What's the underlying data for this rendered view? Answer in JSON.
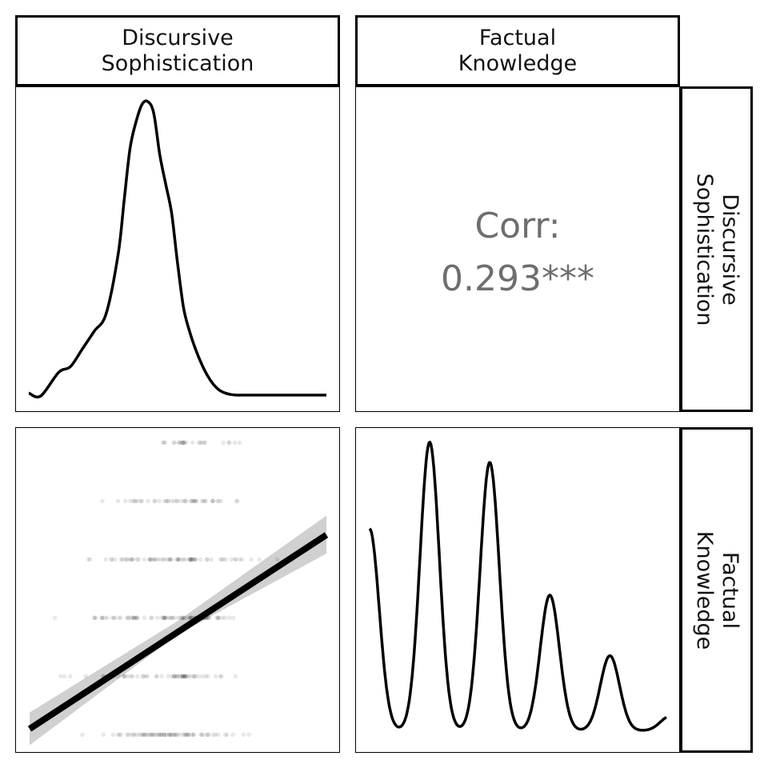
{
  "strips": {
    "top": [
      {
        "line1": "Discursive",
        "line2": "Sophistication"
      },
      {
        "line1": "Factual",
        "line2": "Knowledge"
      }
    ],
    "right": [
      {
        "line1": "Discursive",
        "line2": "Sophistication"
      },
      {
        "line1": "Factual",
        "line2": "Knowledge"
      }
    ]
  },
  "colors": {
    "line": "#000000",
    "band": "#d0d0d0",
    "points": "#000000",
    "corr_text": "#6e6e6e"
  },
  "chart_data": [
    {
      "type": "line",
      "panel": "Discursive Sophistication density",
      "x": [
        0.0,
        0.04,
        0.1,
        0.14,
        0.18,
        0.22,
        0.26,
        0.3,
        0.32,
        0.34,
        0.36,
        0.38,
        0.4,
        0.42,
        0.44,
        0.46,
        0.48,
        0.5,
        0.52,
        0.54,
        0.56,
        0.58,
        0.6,
        0.62,
        0.64,
        0.66,
        0.68,
        0.7,
        0.72,
        0.76,
        0.8,
        0.86,
        0.92,
        1.0
      ],
      "y": [
        0.01,
        0.0,
        0.08,
        0.1,
        0.16,
        0.22,
        0.28,
        0.48,
        0.66,
        0.84,
        0.93,
        0.99,
        1.0,
        0.96,
        0.82,
        0.72,
        0.62,
        0.45,
        0.3,
        0.22,
        0.16,
        0.11,
        0.07,
        0.04,
        0.02,
        0.01,
        0.005,
        0.003,
        0.003,
        0.003,
        0.003,
        0.003,
        0.003,
        0.003
      ],
      "xlim": [
        0,
        1
      ],
      "ylim": [
        0,
        1
      ]
    },
    {
      "type": "text",
      "panel": "correlation",
      "label": "Corr:",
      "value": "0.293***"
    },
    {
      "type": "scatter",
      "panel": "Factual Knowledge vs Discursive Sophistication",
      "levels": [
        0,
        1,
        2,
        3,
        4,
        5
      ],
      "ranges": [
        [
          0.1,
          0.8
        ],
        [
          0.05,
          0.75
        ],
        [
          0.0,
          0.78
        ],
        [
          0.1,
          1.0
        ],
        [
          0.2,
          0.75
        ],
        [
          0.4,
          0.8
        ]
      ],
      "centers": [
        0.45,
        0.45,
        0.48,
        0.5,
        0.52,
        0.52
      ],
      "points_per_level": [
        70,
        55,
        80,
        70,
        45,
        25
      ],
      "fit": {
        "x": [
          0,
          1
        ],
        "y": [
          0.1,
          3.42
        ]
      },
      "band": {
        "x": [
          0,
          0.5,
          1
        ],
        "lower": [
          -0.18,
          1.72,
          3.1
        ],
        "upper": [
          0.38,
          1.95,
          3.75
        ]
      },
      "xlim": [
        0,
        1
      ],
      "ylim": [
        -0.2,
        5.25
      ]
    },
    {
      "type": "line",
      "panel": "Factual Knowledge density",
      "peaks": [
        {
          "x": 0.0,
          "h": 0.7
        },
        {
          "x": 1.0,
          "h": 1.0
        },
        {
          "x": 2.0,
          "h": 0.93
        },
        {
          "x": 3.0,
          "h": 0.47
        },
        {
          "x": 4.0,
          "h": 0.26
        },
        {
          "x": 5.0,
          "h": 0.05
        }
      ],
      "baseline": 0.01,
      "sigma": 0.16,
      "xlim": [
        0,
        4.94
      ],
      "ylim": [
        0,
        1.02
      ]
    }
  ]
}
